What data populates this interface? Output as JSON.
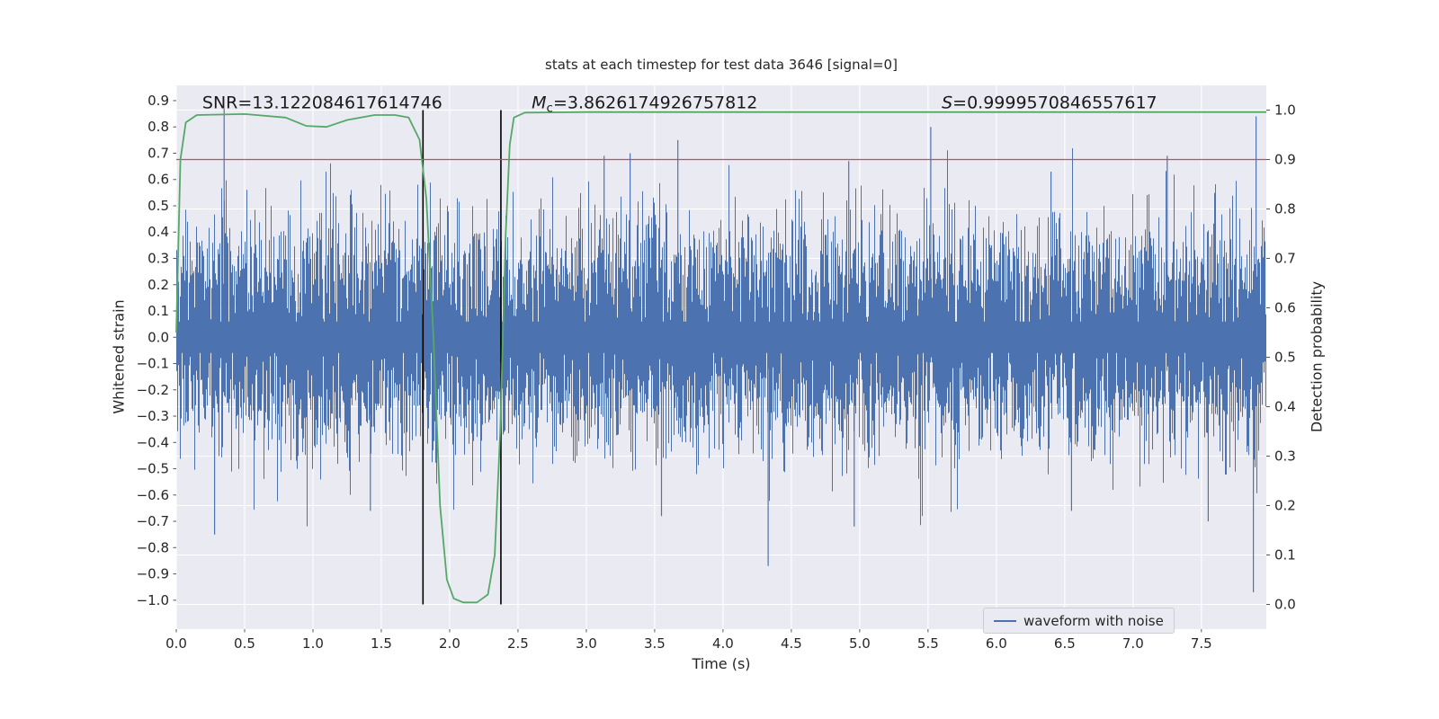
{
  "chart_data": {
    "type": "line",
    "title": "stats at each timestep for test data 3646 [signal=0]",
    "xlabel": "Time (s)",
    "ylabel_left": "Whitened strain",
    "ylabel_right": "Detection probability",
    "xlim": [
      0,
      7.975
    ],
    "ylim_left": [
      -1.11,
      0.958
    ],
    "ylim_right": [
      -0.05,
      1.05
    ],
    "x_ticks": [
      0.0,
      0.5,
      1.0,
      1.5,
      2.0,
      2.5,
      3.0,
      3.5,
      4.0,
      4.5,
      5.0,
      5.5,
      6.0,
      6.5,
      7.0,
      7.5
    ],
    "y_ticks_left": [
      0.9,
      0.8,
      0.7,
      0.6,
      0.5,
      0.4,
      0.3,
      0.2,
      0.1,
      0.0,
      -0.1,
      -0.2,
      -0.3,
      -0.4,
      -0.5,
      -0.6,
      -0.7,
      -0.8,
      -0.9,
      -1.0
    ],
    "y_ticks_right": [
      1.0,
      0.9,
      0.8,
      0.7,
      0.6,
      0.5,
      0.4,
      0.3,
      0.2,
      0.1,
      0.0
    ],
    "grid": {
      "show": true,
      "color": "#ffffff"
    },
    "plot_bg": "#eaeaf2",
    "text_color": "#262626",
    "annotations": [
      {
        "id": "snr",
        "x": 0.19,
        "y": 0.87,
        "parts": [
          {
            "t": "SNR=13.122084617614746",
            "style": "normal"
          }
        ]
      },
      {
        "id": "mc",
        "x": 2.6,
        "y": 0.87,
        "parts": [
          {
            "t": "M",
            "style": "italic"
          },
          {
            "t": "c",
            "style": "sub"
          },
          {
            "t": "=3.8626174926757812",
            "style": "normal"
          }
        ]
      },
      {
        "id": "s",
        "x": 5.6,
        "y": 0.87,
        "parts": [
          {
            "t": "S",
            "style": "italic"
          },
          {
            "t": "=0.9999570846557617",
            "style": "normal"
          }
        ]
      }
    ],
    "series": [
      {
        "name": "waveform with noise",
        "kind": "noise",
        "axis": "left",
        "color": "#4c72b0",
        "std": 0.2,
        "samples_per_pixel": 7,
        "seed": 3646,
        "spikes": [
          [
            0.35,
            0.87
          ],
          [
            3.13,
            0.69
          ],
          [
            3.32,
            0.7
          ],
          [
            3.67,
            0.75
          ],
          [
            4.92,
            0.67
          ],
          [
            5.52,
            0.8
          ],
          [
            6.4,
            0.63
          ],
          [
            7.25,
            0.69
          ],
          [
            7.9,
            0.84
          ],
          [
            0.28,
            -0.75
          ],
          [
            1.42,
            -0.66
          ],
          [
            3.55,
            -0.68
          ],
          [
            4.33,
            -0.87
          ],
          [
            4.96,
            -0.72
          ],
          [
            6.55,
            -0.66
          ],
          [
            7.55,
            -0.7
          ],
          [
            7.88,
            -0.97
          ]
        ]
      },
      {
        "name": "detection probability",
        "kind": "line",
        "axis": "right",
        "color": "#55a868",
        "points": [
          [
            0.0,
            0.55
          ],
          [
            0.03,
            0.9
          ],
          [
            0.07,
            0.975
          ],
          [
            0.15,
            0.99
          ],
          [
            0.5,
            0.992
          ],
          [
            0.8,
            0.985
          ],
          [
            0.95,
            0.968
          ],
          [
            1.1,
            0.966
          ],
          [
            1.25,
            0.98
          ],
          [
            1.45,
            0.99
          ],
          [
            1.6,
            0.99
          ],
          [
            1.7,
            0.985
          ],
          [
            1.78,
            0.94
          ],
          [
            1.83,
            0.82
          ],
          [
            1.88,
            0.55
          ],
          [
            1.93,
            0.2
          ],
          [
            1.98,
            0.05
          ],
          [
            2.03,
            0.012
          ],
          [
            2.1,
            0.004
          ],
          [
            2.2,
            0.004
          ],
          [
            2.28,
            0.02
          ],
          [
            2.33,
            0.1
          ],
          [
            2.37,
            0.35
          ],
          [
            2.41,
            0.75
          ],
          [
            2.44,
            0.93
          ],
          [
            2.47,
            0.985
          ],
          [
            2.55,
            0.995
          ],
          [
            3.0,
            0.996
          ],
          [
            5.0,
            0.996
          ],
          [
            7.975,
            0.996
          ]
        ]
      }
    ],
    "threshold": {
      "value": 0.9,
      "axis": "right",
      "color": "#c44e52"
    },
    "vlines": [
      {
        "x": 1.805,
        "color": "#000000",
        "span": [
          0.0,
          1.0
        ]
      },
      {
        "x": 2.375,
        "color": "#000000",
        "span": [
          0.0,
          1.0
        ]
      }
    ],
    "legend": {
      "labels": [
        "waveform with noise"
      ],
      "colors": [
        "#4c72b0"
      ],
      "position": "lower right"
    }
  }
}
